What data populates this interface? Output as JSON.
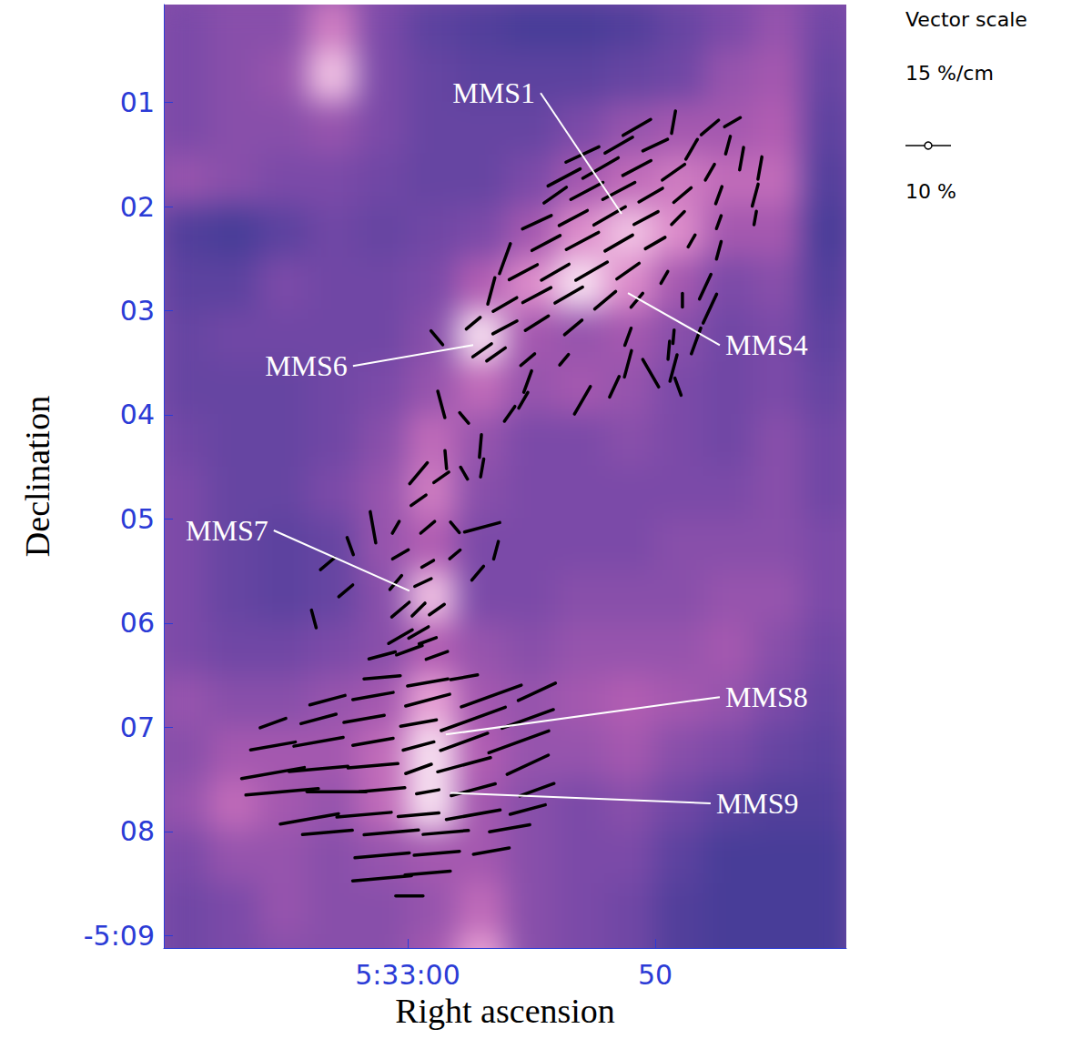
{
  "chart_data": {
    "type": "polarization",
    "x_label": "Right ascension",
    "y_label": "Declination",
    "xlim": [
      69.85,
      42.28
    ],
    "ylim": [
      9.12,
      0.06
    ],
    "xticks": [
      {
        "value": 60,
        "label": "5:33:00"
      },
      50
    ],
    "yticks": [
      {
        "value": 1,
        "label": "01"
      },
      {
        "value": 2,
        "label": "02"
      },
      {
        "value": 3,
        "label": "03"
      },
      {
        "value": 4,
        "label": "04"
      },
      {
        "value": 5,
        "label": "05"
      },
      {
        "value": 6,
        "label": "06"
      },
      {
        "value": 7,
        "label": "07"
      },
      {
        "value": 8,
        "label": "08"
      },
      {
        "value": 9,
        "label": "-5:09"
      }
    ],
    "image": {
      "ra": [
        69,
        67,
        65,
        63,
        61,
        59,
        57,
        55,
        53,
        51,
        49,
        47,
        45,
        43
      ],
      "dec": [
        0.25,
        0.75,
        1.25,
        1.75,
        2.25,
        2.75,
        3.25,
        3.75,
        4.25,
        4.75,
        5.25,
        5.75,
        6.25,
        6.75,
        7.25,
        7.75,
        8.25,
        8.75,
        9.25
      ],
      "intensity_range": [
        0.15,
        1
      ],
      "intensity": [
        [
          0.45,
          0.5,
          0.5,
          0.75,
          0.45,
          0.3,
          0.25,
          0.2,
          0.2,
          0.25,
          0.35,
          0.45,
          0.55,
          0.4
        ],
        [
          0.45,
          0.5,
          0.55,
          0.9,
          0.45,
          0.35,
          0.3,
          0.3,
          0.3,
          0.35,
          0.4,
          0.55,
          0.6,
          0.35
        ],
        [
          0.45,
          0.5,
          0.5,
          0.55,
          0.45,
          0.35,
          0.35,
          0.35,
          0.45,
          0.55,
          0.6,
          0.6,
          0.65,
          0.3
        ],
        [
          0.55,
          0.5,
          0.45,
          0.45,
          0.4,
          0.35,
          0.35,
          0.45,
          0.6,
          0.7,
          0.75,
          0.7,
          0.7,
          0.25
        ],
        [
          0.25,
          0.2,
          0.3,
          0.4,
          0.35,
          0.4,
          0.45,
          0.6,
          0.8,
          0.9,
          0.8,
          0.6,
          0.6,
          0.2
        ],
        [
          0.3,
          0.3,
          0.45,
          0.4,
          0.4,
          0.45,
          0.65,
          0.8,
          0.95,
          0.8,
          0.6,
          0.45,
          0.5,
          0.25
        ],
        [
          0.35,
          0.4,
          0.4,
          0.4,
          0.4,
          0.5,
          0.95,
          0.6,
          0.55,
          0.6,
          0.5,
          0.4,
          0.45,
          0.3
        ],
        [
          0.35,
          0.35,
          0.35,
          0.4,
          0.45,
          0.55,
          0.7,
          0.55,
          0.6,
          0.55,
          0.45,
          0.4,
          0.45,
          0.35
        ],
        [
          0.4,
          0.35,
          0.35,
          0.4,
          0.5,
          0.7,
          0.55,
          0.45,
          0.45,
          0.5,
          0.45,
          0.4,
          0.5,
          0.4
        ],
        [
          0.45,
          0.35,
          0.35,
          0.45,
          0.55,
          0.75,
          0.5,
          0.45,
          0.45,
          0.45,
          0.45,
          0.45,
          0.5,
          0.4
        ],
        [
          0.45,
          0.35,
          0.3,
          0.35,
          0.55,
          0.65,
          0.45,
          0.45,
          0.45,
          0.45,
          0.5,
          0.5,
          0.5,
          0.45
        ],
        [
          0.45,
          0.35,
          0.3,
          0.35,
          0.5,
          0.9,
          0.45,
          0.45,
          0.5,
          0.5,
          0.5,
          0.55,
          0.55,
          0.45
        ],
        [
          0.45,
          0.4,
          0.4,
          0.45,
          0.5,
          0.65,
          0.55,
          0.5,
          0.55,
          0.55,
          0.55,
          0.6,
          0.5,
          0.4
        ],
        [
          0.55,
          0.5,
          0.5,
          0.55,
          0.6,
          0.85,
          0.6,
          0.55,
          0.6,
          0.65,
          0.6,
          0.55,
          0.45,
          0.35
        ],
        [
          0.5,
          0.6,
          0.6,
          0.6,
          0.7,
          0.95,
          0.65,
          0.55,
          0.55,
          0.6,
          0.5,
          0.45,
          0.35,
          0.3
        ],
        [
          0.55,
          0.7,
          0.6,
          0.55,
          0.7,
          0.95,
          0.6,
          0.5,
          0.45,
          0.5,
          0.4,
          0.3,
          0.25,
          0.25
        ],
        [
          0.45,
          0.55,
          0.55,
          0.5,
          0.55,
          0.6,
          0.6,
          0.5,
          0.45,
          0.45,
          0.3,
          0.2,
          0.2,
          0.2
        ],
        [
          0.4,
          0.45,
          0.55,
          0.5,
          0.5,
          0.55,
          0.7,
          0.5,
          0.45,
          0.4,
          0.25,
          0.2,
          0.2,
          0.2
        ],
        [
          0.4,
          0.45,
          0.5,
          0.5,
          0.5,
          0.6,
          0.85,
          0.5,
          0.45,
          0.4,
          0.25,
          0.2,
          0.2,
          0.2
        ]
      ]
    },
    "vectors": [
      [
        50.74,
        1.24,
        7,
        120
      ],
      [
        49.26,
        1.19,
        5,
        170
      ],
      [
        47.79,
        1.24,
        5,
        130
      ],
      [
        46.88,
        1.19,
        4,
        120
      ],
      [
        52.94,
        1.5,
        8,
        115
      ],
      [
        51.47,
        1.41,
        7,
        120
      ],
      [
        50.0,
        1.41,
        6,
        115
      ],
      [
        48.53,
        1.45,
        5,
        150
      ],
      [
        47.06,
        1.41,
        4,
        165
      ],
      [
        53.68,
        1.72,
        8,
        118
      ],
      [
        52.21,
        1.63,
        9,
        120
      ],
      [
        50.74,
        1.63,
        7,
        118
      ],
      [
        49.26,
        1.67,
        6,
        125
      ],
      [
        47.79,
        1.67,
        4,
        150
      ],
      [
        46.51,
        1.54,
        5,
        170
      ],
      [
        45.77,
        1.63,
        5,
        170
      ],
      [
        54.04,
        1.89,
        6,
        125
      ],
      [
        52.76,
        1.85,
        8,
        118
      ],
      [
        51.47,
        1.85,
        8,
        118
      ],
      [
        50.18,
        1.89,
        6,
        120
      ],
      [
        48.9,
        1.89,
        5,
        130
      ],
      [
        47.43,
        1.89,
        4,
        160
      ],
      [
        45.96,
        1.89,
        5,
        165
      ],
      [
        54.78,
        2.15,
        7,
        115
      ],
      [
        53.31,
        2.11,
        7,
        118
      ],
      [
        51.84,
        2.09,
        8,
        120
      ],
      [
        50.37,
        2.11,
        6,
        118
      ],
      [
        49.08,
        2.11,
        4,
        135
      ],
      [
        47.43,
        2.15,
        3,
        160
      ],
      [
        45.96,
        2.11,
        3,
        170
      ],
      [
        56.07,
        2.5,
        7,
        160
      ],
      [
        54.41,
        2.35,
        7,
        118
      ],
      [
        52.94,
        2.33,
        8,
        118
      ],
      [
        51.47,
        2.35,
        7,
        120
      ],
      [
        50.0,
        2.35,
        5,
        120
      ],
      [
        48.53,
        2.33,
        3,
        150
      ],
      [
        47.43,
        2.42,
        4,
        165
      ],
      [
        56.62,
        2.81,
        6,
        165
      ],
      [
        55.33,
        2.63,
        7,
        118
      ],
      [
        54.04,
        2.63,
        7,
        120
      ],
      [
        52.57,
        2.62,
        8,
        120
      ],
      [
        51.1,
        2.62,
        6,
        125
      ],
      [
        49.63,
        2.68,
        3,
        150
      ],
      [
        47.98,
        2.77,
        6,
        155
      ],
      [
        56.07,
        2.94,
        6,
        120
      ],
      [
        54.78,
        2.85,
        7,
        118
      ],
      [
        53.49,
        2.85,
        7,
        120
      ],
      [
        52.02,
        2.9,
        6,
        130
      ],
      [
        50.74,
        2.9,
        4,
        140
      ],
      [
        48.9,
        2.9,
        3,
        0
      ],
      [
        47.79,
        2.98,
        7,
        155
      ],
      [
        57.35,
        3.12,
        4,
        130
      ],
      [
        56.07,
        3.16,
        6,
        118
      ],
      [
        54.78,
        3.12,
        6,
        122
      ],
      [
        53.31,
        3.16,
        5,
        130
      ],
      [
        51.1,
        3.25,
        4,
        160
      ],
      [
        49.26,
        3.25,
        3,
        175
      ],
      [
        48.35,
        3.29,
        6,
        160
      ],
      [
        56.43,
        3.42,
        5,
        125
      ],
      [
        55.15,
        3.47,
        4,
        130
      ],
      [
        53.68,
        3.47,
        3,
        140
      ],
      [
        51.1,
        3.51,
        6,
        165
      ],
      [
        49.45,
        3.38,
        4,
        175
      ],
      [
        55.15,
        3.68,
        5,
        160
      ],
      [
        52.94,
        3.86,
        7,
        150
      ],
      [
        51.65,
        3.73,
        5,
        155
      ],
      [
        50.18,
        3.6,
        7,
        30
      ],
      [
        49.26,
        3.55,
        6,
        165
      ],
      [
        49.08,
        3.73,
        4,
        20
      ],
      [
        58.82,
        3.26,
        4,
        40
      ],
      [
        56.99,
        3.38,
        5,
        125
      ],
      [
        55.33,
        3.86,
        4,
        150
      ],
      [
        55.88,
        3.99,
        4,
        145
      ],
      [
        58.64,
        3.9,
        6,
        15
      ],
      [
        57.72,
        4.03,
        3,
        40
      ],
      [
        57.06,
        4.3,
        5,
        175
      ],
      [
        58.46,
        4.43,
        4,
        5
      ],
      [
        59.56,
        4.56,
        6,
        140
      ],
      [
        58.64,
        4.6,
        4,
        125
      ],
      [
        57.72,
        4.56,
        3,
        30
      ],
      [
        56.99,
        4.51,
        4,
        170
      ],
      [
        59.56,
        4.82,
        4,
        125
      ],
      [
        61.4,
        5.08,
        7,
        10
      ],
      [
        60.48,
        5.08,
        3,
        150
      ],
      [
        59.19,
        5.08,
        4,
        130
      ],
      [
        58.09,
        5.08,
        3,
        40
      ],
      [
        56.99,
        5.08,
        8,
        105
      ],
      [
        56.43,
        5.3,
        4,
        165
      ],
      [
        62.32,
        5.26,
        4,
        20
      ],
      [
        60.29,
        5.34,
        4,
        120
      ],
      [
        59.19,
        5.43,
        3,
        120
      ],
      [
        58.09,
        5.34,
        3,
        130
      ],
      [
        57.17,
        5.52,
        4,
        140
      ],
      [
        63.24,
        5.43,
        4,
        130
      ],
      [
        62.5,
        5.69,
        4,
        130
      ],
      [
        63.79,
        5.96,
        4,
        15
      ],
      [
        60.48,
        5.61,
        4,
        140
      ],
      [
        59.38,
        5.61,
        4,
        115
      ],
      [
        60.29,
        5.87,
        5,
        130
      ],
      [
        59.56,
        5.87,
        4,
        135
      ],
      [
        58.82,
        5.87,
        4,
        125
      ],
      [
        59.56,
        6.09,
        5,
        120
      ],
      [
        60.29,
        6.13,
        6,
        120
      ],
      [
        59.19,
        6.17,
        4,
        110
      ],
      [
        61.03,
        6.31,
        6,
        105
      ],
      [
        59.93,
        6.26,
        6,
        110
      ],
      [
        58.82,
        6.31,
        5,
        110
      ],
      [
        61.03,
        6.52,
        8,
        95
      ],
      [
        59.19,
        6.57,
        9,
        100
      ],
      [
        57.72,
        6.52,
        6,
        100
      ],
      [
        63.24,
        6.74,
        8,
        105
      ],
      [
        61.4,
        6.7,
        9,
        100
      ],
      [
        59.19,
        6.74,
        10,
        105
      ],
      [
        56.62,
        6.7,
        14,
        110
      ],
      [
        54.78,
        6.66,
        9,
        115
      ],
      [
        65.44,
        6.96,
        6,
        110
      ],
      [
        63.6,
        6.92,
        8,
        105
      ],
      [
        61.76,
        6.92,
        9,
        100
      ],
      [
        59.56,
        6.96,
        8,
        100
      ],
      [
        57.35,
        6.92,
        15,
        110
      ],
      [
        55.15,
        6.92,
        12,
        110
      ],
      [
        65.44,
        7.18,
        10,
        100
      ],
      [
        63.6,
        7.14,
        11,
        100
      ],
      [
        61.4,
        7.14,
        9,
        100
      ],
      [
        59.56,
        7.18,
        7,
        105
      ],
      [
        57.72,
        7.14,
        11,
        110
      ],
      [
        55.51,
        7.14,
        14,
        110
      ],
      [
        65.44,
        7.44,
        14,
        100
      ],
      [
        63.6,
        7.4,
        13,
        95
      ],
      [
        61.4,
        7.37,
        11,
        95
      ],
      [
        59.56,
        7.4,
        6,
        110
      ],
      [
        57.72,
        7.36,
        12,
        105
      ],
      [
        55.15,
        7.36,
        10,
        115
      ],
      [
        65.07,
        7.62,
        16,
        95
      ],
      [
        62.87,
        7.62,
        13,
        90
      ],
      [
        61.03,
        7.6,
        10,
        95
      ],
      [
        59.19,
        7.62,
        5,
        100
      ],
      [
        57.35,
        7.6,
        10,
        105
      ],
      [
        54.78,
        7.6,
        8,
        110
      ],
      [
        63.97,
        7.88,
        13,
        100
      ],
      [
        61.76,
        7.84,
        12,
        95
      ],
      [
        59.56,
        7.84,
        9,
        95
      ],
      [
        57.35,
        7.84,
        12,
        100
      ],
      [
        55.15,
        7.79,
        8,
        105
      ],
      [
        63.24,
        8.01,
        11,
        95
      ],
      [
        60.66,
        8.01,
        12,
        95
      ],
      [
        58.46,
        8.01,
        10,
        95
      ],
      [
        55.88,
        7.97,
        9,
        100
      ],
      [
        61.03,
        8.23,
        12,
        95
      ],
      [
        58.82,
        8.21,
        10,
        95
      ],
      [
        56.62,
        8.19,
        8,
        100
      ],
      [
        61.03,
        8.45,
        13,
        95
      ],
      [
        59.19,
        8.4,
        10,
        95
      ],
      [
        59.93,
        8.62,
        6,
        90
      ]
    ],
    "vector_scale": {
      "title": "Vector scale",
      "value": 15,
      "label": "15 %/cm",
      "sample": 10,
      "sample_label": "10 %"
    },
    "annotations": [
      {
        "text": "MMS1",
        "x": 51.36,
        "y": 2.07,
        "text_x": 54.85,
        "text_y": 0.91
      },
      {
        "text": "MMS4",
        "x": 51.1,
        "y": 2.83,
        "text_x": 47.17,
        "text_y": 3.33
      },
      {
        "text": "MMS6",
        "x": 57.35,
        "y": 3.33,
        "text_x": 62.43,
        "text_y": 3.53
      },
      {
        "text": "MMS7",
        "x": 59.93,
        "y": 5.69,
        "text_x": 65.63,
        "text_y": 5.11
      },
      {
        "text": "MMS8",
        "x": 58.46,
        "y": 7.07,
        "text_x": 47.17,
        "text_y": 6.71
      },
      {
        "text": "MMS9",
        "x": 58.27,
        "y": 7.63,
        "text_x": 47.54,
        "text_y": 7.73
      }
    ]
  }
}
